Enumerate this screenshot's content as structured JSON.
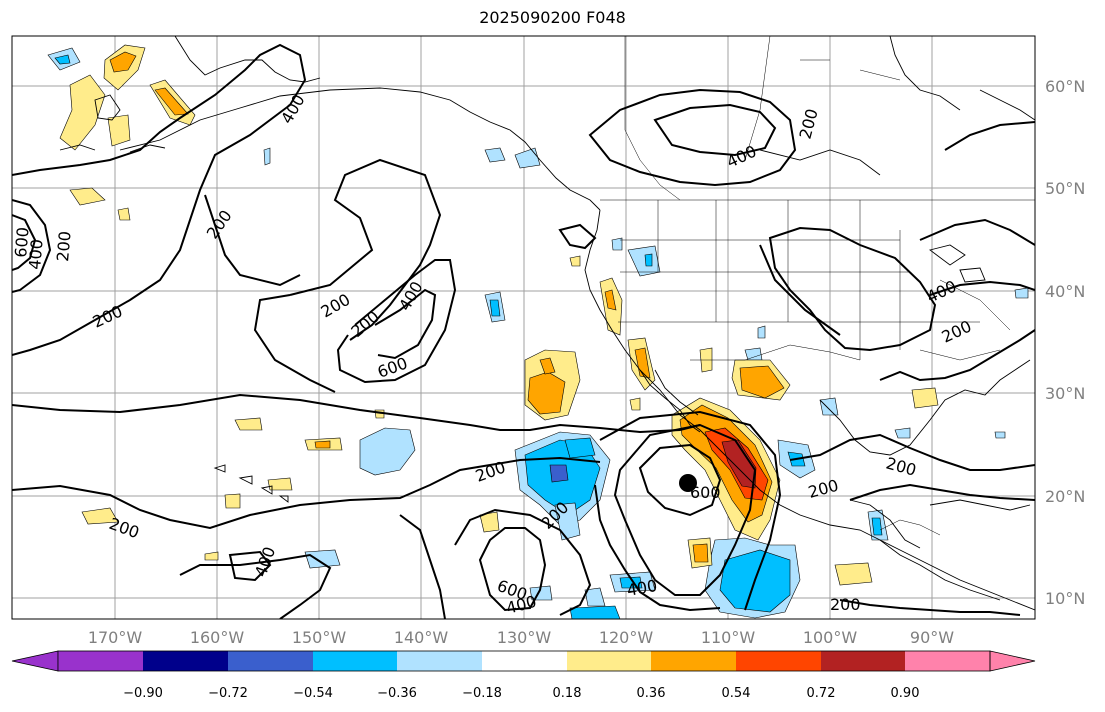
{
  "title": "2025090200 F048",
  "lat_labels": [
    "60°N",
    "50°N",
    "40°N",
    "30°N",
    "20°N",
    "10°N"
  ],
  "lon_labels": [
    "170°W",
    "160°W",
    "150°W",
    "140°W",
    "130°W",
    "120°W",
    "110°W",
    "100°W",
    "90°W"
  ],
  "colorbar": {
    "tick_labels": [
      "−0.90",
      "−0.72",
      "−0.54",
      "−0.36",
      "−0.18",
      "0.18",
      "0.36",
      "0.54",
      "0.72",
      "0.90"
    ],
    "colors": [
      "#9932cc",
      "#00008b",
      "#3a5fcd",
      "#00bfff",
      "#b0e2ff",
      "#ffffff",
      "#ffec8b",
      "#ffa500",
      "#ff4500",
      "#b22222",
      "#ff82ab"
    ]
  },
  "contour_labels": [
    {
      "text": "200"
    },
    {
      "text": "400"
    },
    {
      "text": "600"
    },
    {
      "text": "200"
    },
    {
      "text": "400"
    },
    {
      "text": "200"
    },
    {
      "text": "600"
    },
    {
      "text": "200"
    },
    {
      "text": "200"
    },
    {
      "text": "200"
    },
    {
      "text": "400"
    },
    {
      "text": "200"
    },
    {
      "text": "600"
    },
    {
      "text": "200"
    },
    {
      "text": "400"
    },
    {
      "text": "600"
    },
    {
      "text": "400"
    },
    {
      "text": "200"
    },
    {
      "text": "200"
    },
    {
      "text": "400"
    },
    {
      "text": "200"
    },
    {
      "text": "400"
    },
    {
      "text": "200"
    },
    {
      "text": "200"
    },
    {
      "text": "400"
    },
    {
      "text": "200"
    },
    {
      "text": "600"
    },
    {
      "text": "400"
    }
  ],
  "storm_marker": "black-dot"
}
